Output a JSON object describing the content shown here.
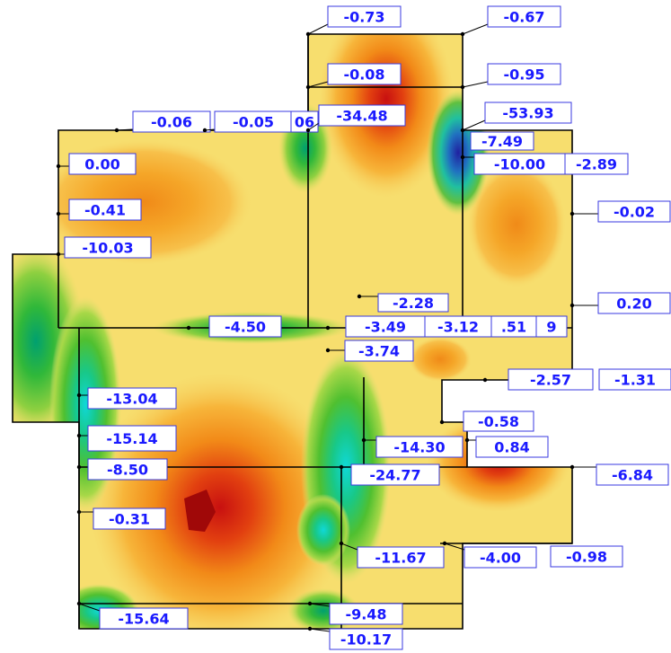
{
  "plot": {
    "labels": [
      {
        "id": "l1",
        "text": "-0.73"
      },
      {
        "id": "l2",
        "text": "-0.67"
      },
      {
        "id": "l3",
        "text": "-0.08"
      },
      {
        "id": "l4",
        "text": "-0.95"
      },
      {
        "id": "l5",
        "text": "-0.06"
      },
      {
        "id": "l6",
        "text": "-0.05"
      },
      {
        "id": "l7",
        "text": "06"
      },
      {
        "id": "l8",
        "text": "-34.48"
      },
      {
        "id": "l9",
        "text": "-53.93"
      },
      {
        "id": "l10",
        "text": "-7.49"
      },
      {
        "id": "l11",
        "text": "-10.00"
      },
      {
        "id": "l12",
        "text": "-2.89"
      },
      {
        "id": "l13",
        "text": "0.00"
      },
      {
        "id": "l14",
        "text": "-0.41"
      },
      {
        "id": "l15",
        "text": "-0.02"
      },
      {
        "id": "l16",
        "text": "-10.03"
      },
      {
        "id": "l17",
        "text": "-2.28"
      },
      {
        "id": "l18",
        "text": "0.20"
      },
      {
        "id": "l19",
        "text": "-4.50"
      },
      {
        "id": "l20",
        "text": "-3.49"
      },
      {
        "id": "l21",
        "text": "-3.12"
      },
      {
        "id": "l22",
        "text": ".51"
      },
      {
        "id": "l23",
        "text": "9"
      },
      {
        "id": "l24",
        "text": "-3.74"
      },
      {
        "id": "l25",
        "text": "-2.57"
      },
      {
        "id": "l26",
        "text": "-1.31"
      },
      {
        "id": "l27",
        "text": "-13.04"
      },
      {
        "id": "l28",
        "text": "-15.14"
      },
      {
        "id": "l29",
        "text": "-0.58"
      },
      {
        "id": "l30",
        "text": "-14.30"
      },
      {
        "id": "l31",
        "text": "0.84"
      },
      {
        "id": "l32",
        "text": "-8.50"
      },
      {
        "id": "l33",
        "text": "-24.77"
      },
      {
        "id": "l34",
        "text": "-6.84"
      },
      {
        "id": "l35",
        "text": "-0.31"
      },
      {
        "id": "l36",
        "text": "-11.67"
      },
      {
        "id": "l37",
        "text": "-4.00"
      },
      {
        "id": "l38",
        "text": "-0.98"
      },
      {
        "id": "l39",
        "text": "-15.64"
      },
      {
        "id": "l40",
        "text": "-9.48"
      },
      {
        "id": "l41",
        "text": "-10.17"
      }
    ]
  }
}
